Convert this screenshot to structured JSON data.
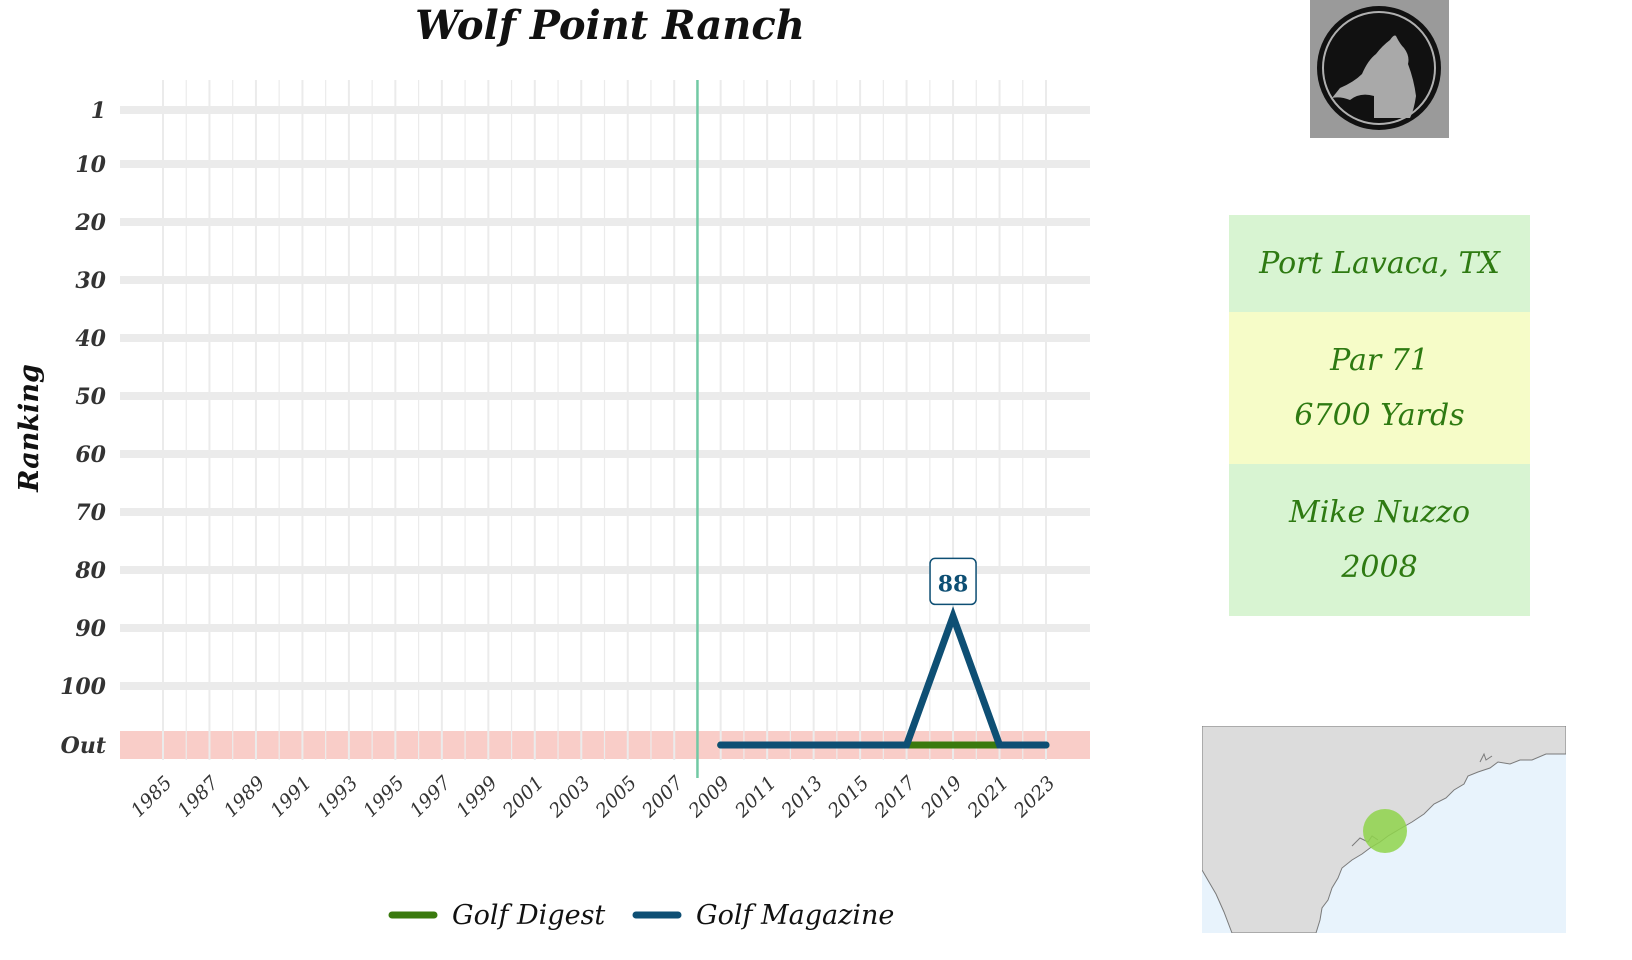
{
  "chart_data": {
    "type": "line",
    "title": "Wolf Point Ranch",
    "ylabel": "Ranking",
    "xlabel": "",
    "x_ticks": [
      "1985",
      "1987",
      "1989",
      "1991",
      "1993",
      "1995",
      "1997",
      "1999",
      "2001",
      "2003",
      "2005",
      "2007",
      "2009",
      "2011",
      "2013",
      "2015",
      "2017",
      "2019",
      "2021",
      "2023"
    ],
    "y_ticks": [
      "1",
      "10",
      "20",
      "30",
      "40",
      "50",
      "60",
      "70",
      "80",
      "90",
      "100",
      "Out"
    ],
    "xlim": [
      1984,
      2025
    ],
    "opened_year": 2008,
    "out_band_label": "Out",
    "series": [
      {
        "name": "Golf Digest",
        "color": "#3a7a0e",
        "points": [
          [
            2009,
            "Out"
          ],
          [
            2011,
            "Out"
          ],
          [
            2013,
            "Out"
          ],
          [
            2015,
            "Out"
          ],
          [
            2017,
            "Out"
          ],
          [
            2019,
            "Out"
          ],
          [
            2021,
            "Out"
          ],
          [
            2023,
            "Out"
          ]
        ]
      },
      {
        "name": "Golf Magazine",
        "color": "#0e4f74",
        "points": [
          [
            2009,
            "Out"
          ],
          [
            2011,
            "Out"
          ],
          [
            2013,
            "Out"
          ],
          [
            2015,
            "Out"
          ],
          [
            2017,
            "Out"
          ],
          [
            2019,
            88
          ],
          [
            2021,
            "Out"
          ],
          [
            2023,
            "Out"
          ]
        ]
      }
    ],
    "data_labels": [
      {
        "x": 2019,
        "y": 88,
        "text": "88",
        "series": "Golf Magazine"
      }
    ],
    "grid": true,
    "legend_position": "bottom",
    "colors": {
      "out_band": "#f9cdc8",
      "opened_line": "#72c9a4",
      "grid": "#ebebeb"
    }
  },
  "info": {
    "location": "Port Lavaca, TX",
    "par": "Par 71",
    "yards": "6700 Yards",
    "architect": "Mike Nuzzo",
    "year": "2008"
  },
  "logo": {
    "icon": "howling-wolf-icon"
  },
  "map": {
    "icon": "texas-coast-map",
    "marker_color": "#8fd34b"
  }
}
